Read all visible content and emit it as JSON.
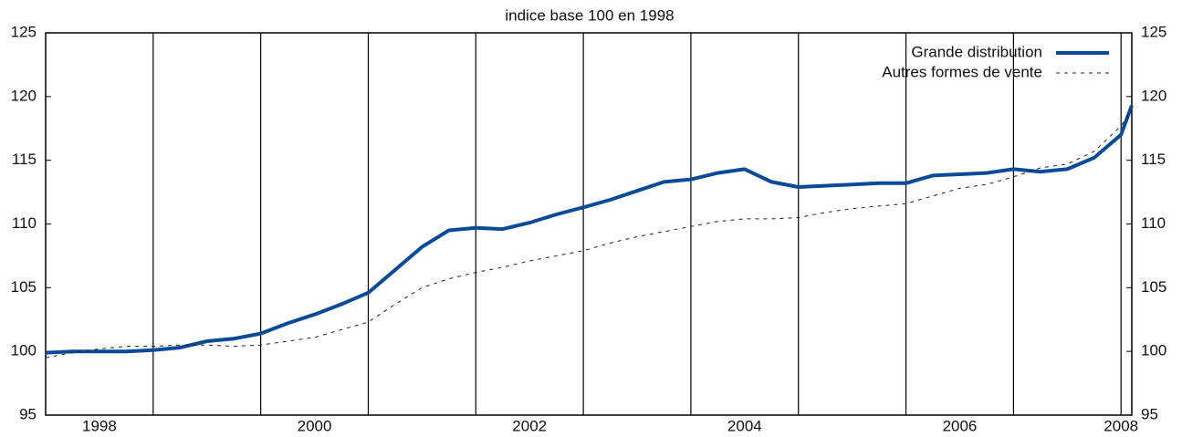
{
  "chart_data": {
    "type": "line",
    "title": "indice base 100 en 1998",
    "x": [
      1998,
      1998.25,
      1998.5,
      1998.75,
      1999,
      1999.25,
      1999.5,
      1999.75,
      2000,
      2000.25,
      2000.5,
      2000.75,
      2001,
      2001.25,
      2001.5,
      2001.75,
      2002,
      2002.25,
      2002.5,
      2002.75,
      2003,
      2003.25,
      2003.5,
      2003.75,
      2004,
      2004.25,
      2004.5,
      2004.75,
      2005,
      2005.25,
      2005.5,
      2005.75,
      2006,
      2006.25,
      2006.5,
      2006.75,
      2007,
      2007.25,
      2007.5,
      2007.75,
      2008,
      2008.1
    ],
    "series": [
      {
        "name": "Grande distribution",
        "color": "#0a4a96",
        "dashed": false,
        "values": [
          99.9,
          100.0,
          100.0,
          100.0,
          100.1,
          100.3,
          100.8,
          101.0,
          101.4,
          102.2,
          102.9,
          103.7,
          104.6,
          106.4,
          108.2,
          109.5,
          109.7,
          109.6,
          110.1,
          110.75,
          111.3,
          111.9,
          112.6,
          113.3,
          113.5,
          114.0,
          114.3,
          113.3,
          112.9,
          113.0,
          113.1,
          113.2,
          113.2,
          113.8,
          113.9,
          114.0,
          114.3,
          114.1,
          114.3,
          115.2,
          117.0,
          119.3
        ]
      },
      {
        "name": "Autres formes de vente",
        "color": "#222222",
        "dashed": true,
        "values": [
          99.5,
          99.9,
          100.2,
          100.4,
          100.4,
          100.5,
          100.5,
          100.4,
          100.5,
          100.8,
          101.1,
          101.7,
          102.3,
          103.7,
          105.0,
          105.7,
          106.2,
          106.6,
          107.1,
          107.5,
          107.9,
          108.5,
          109.0,
          109.4,
          109.8,
          110.2,
          110.4,
          110.4,
          110.5,
          110.9,
          111.2,
          111.4,
          111.6,
          112.2,
          112.8,
          113.1,
          113.7,
          114.4,
          114.7,
          115.7,
          117.7,
          119.0
        ]
      }
    ],
    "xlim": [
      1998,
      2008.1
    ],
    "xticks": [
      {
        "value": 1998.5,
        "label": "1998"
      },
      {
        "value": 2000.5,
        "label": "2000"
      },
      {
        "value": 2002.5,
        "label": "2002"
      },
      {
        "value": 2004.5,
        "label": "2004"
      },
      {
        "value": 2006.5,
        "label": "2006"
      },
      {
        "value": 2008,
        "label": "2008"
      }
    ],
    "xgrid": [
      1999,
      2000,
      2001,
      2002,
      2003,
      2004,
      2005,
      2006,
      2007,
      2008
    ],
    "ylim": [
      95,
      125
    ],
    "yticks": [
      95,
      100,
      105,
      110,
      115,
      120,
      125
    ],
    "legend": "top-right"
  }
}
